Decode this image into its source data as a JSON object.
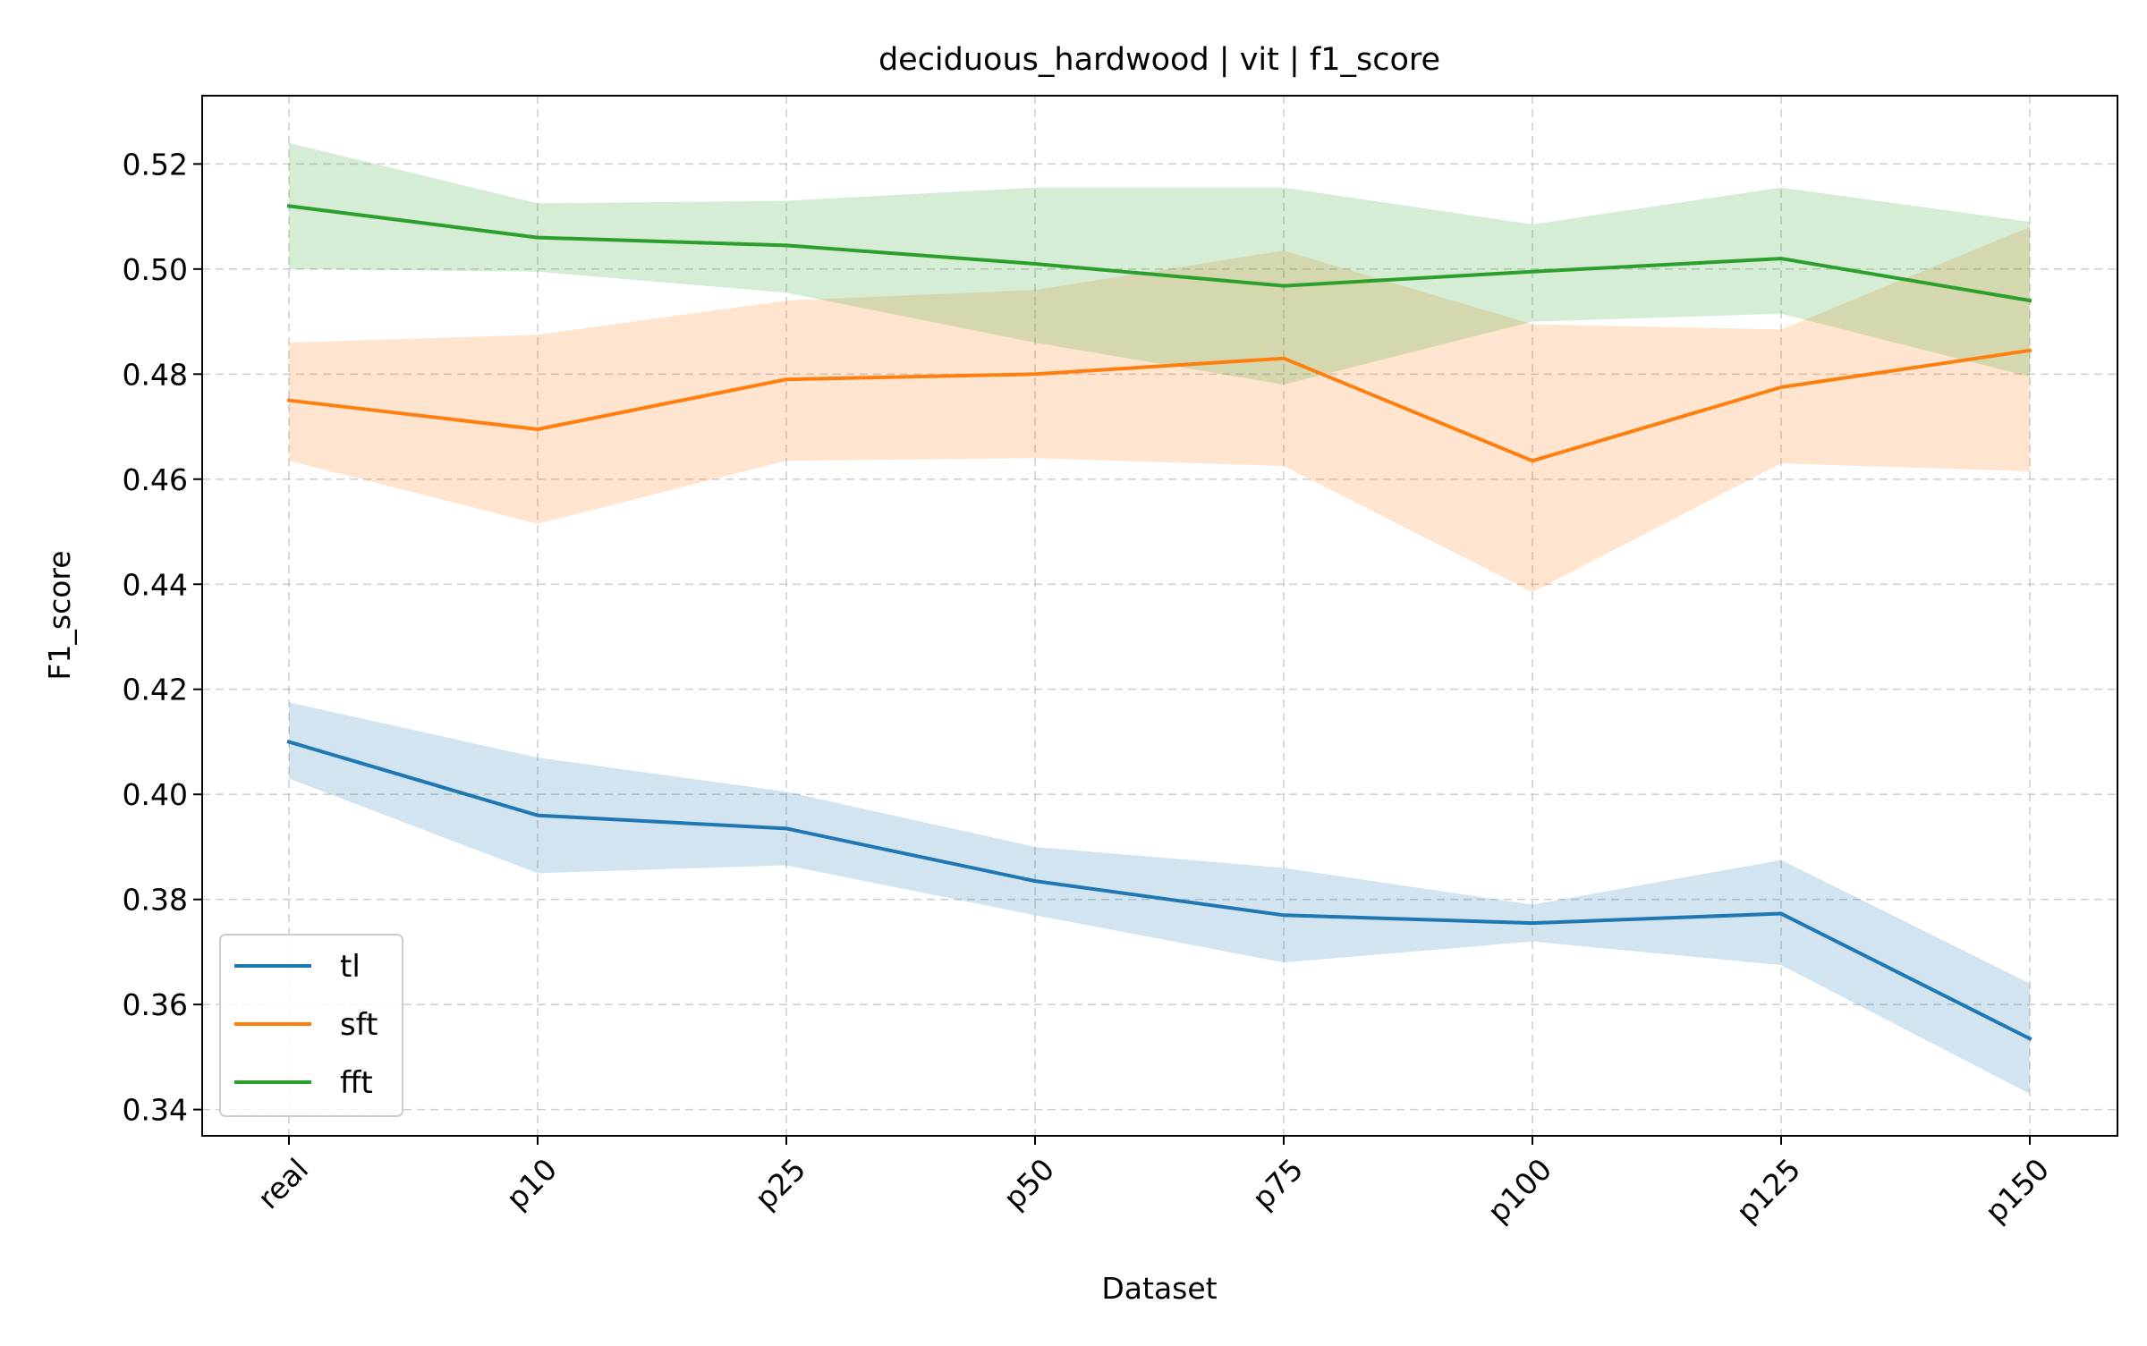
{
  "chart_data": {
    "type": "line",
    "title": "deciduous_hardwood | vit | f1_score",
    "xlabel": "Dataset",
    "ylabel": "F1_score",
    "categories": [
      "real",
      "p10",
      "p25",
      "p50",
      "p75",
      "p100",
      "p125",
      "p150"
    ],
    "ylim": [
      0.335,
      0.533
    ],
    "yticks": [
      0.34,
      0.36,
      0.38,
      0.4,
      0.42,
      0.44,
      0.46,
      0.48,
      0.5,
      0.52
    ],
    "ytick_labels": [
      "0.34",
      "0.36",
      "0.38",
      "0.40",
      "0.42",
      "0.44",
      "0.46",
      "0.48",
      "0.50",
      "0.52"
    ],
    "grid": true,
    "legend_position": "lower-left",
    "series": [
      {
        "name": "tl",
        "color": "#1f77b4",
        "values": [
          0.41,
          0.396,
          0.3935,
          0.3835,
          0.377,
          0.3755,
          0.3773,
          0.3535
        ],
        "lower": [
          0.403,
          0.385,
          0.3865,
          0.377,
          0.368,
          0.372,
          0.3675,
          0.343
        ],
        "upper": [
          0.4175,
          0.407,
          0.4005,
          0.39,
          0.386,
          0.379,
          0.3875,
          0.364
        ]
      },
      {
        "name": "sft",
        "color": "#ff7f0e",
        "values": [
          0.475,
          0.4695,
          0.479,
          0.48,
          0.483,
          0.4635,
          0.4775,
          0.4845
        ],
        "lower": [
          0.4635,
          0.4515,
          0.4635,
          0.464,
          0.4625,
          0.4385,
          0.463,
          0.4615
        ],
        "upper": [
          0.486,
          0.4875,
          0.494,
          0.496,
          0.5035,
          0.4895,
          0.4885,
          0.508
        ]
      },
      {
        "name": "fft",
        "color": "#2ca02c",
        "values": [
          0.512,
          0.506,
          0.5045,
          0.501,
          0.4968,
          0.4995,
          0.502,
          0.494
        ],
        "lower": [
          0.5,
          0.4995,
          0.4955,
          0.486,
          0.478,
          0.49,
          0.4915,
          0.4795
        ],
        "upper": [
          0.524,
          0.5125,
          0.513,
          0.5155,
          0.5155,
          0.5085,
          0.5155,
          0.509
        ]
      }
    ]
  }
}
